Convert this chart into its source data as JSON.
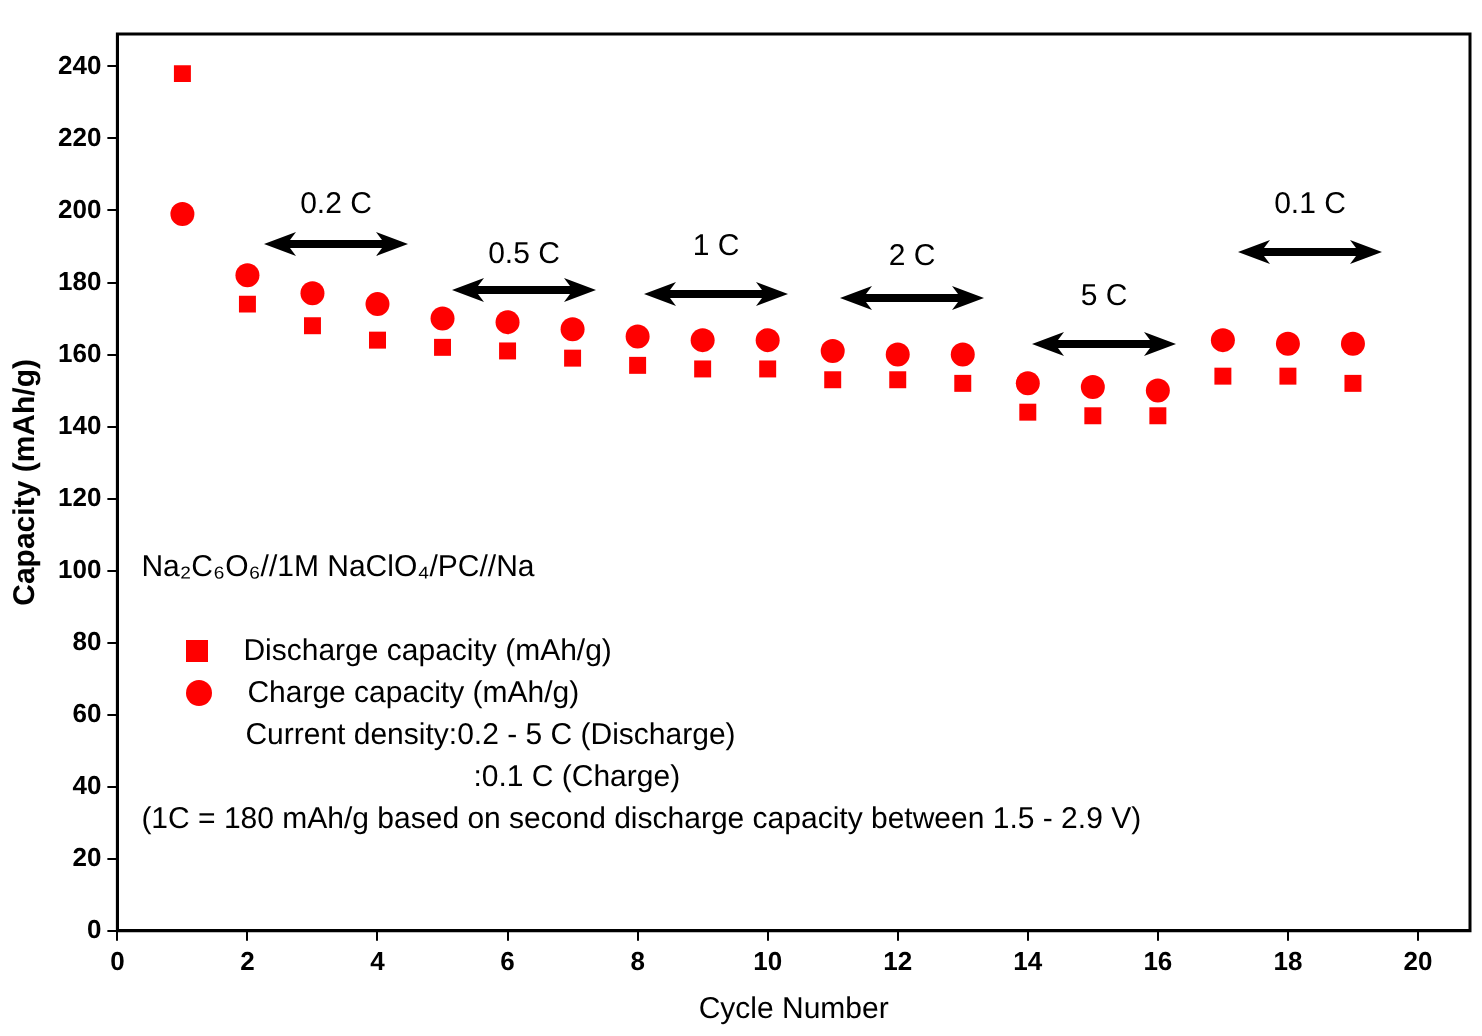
{
  "chart_data": {
    "type": "scatter",
    "xlabel": "Cycle Number",
    "ylabel": "Capacity (mAh/g)",
    "x": [
      1,
      2,
      3,
      4,
      5,
      6,
      7,
      8,
      9,
      10,
      11,
      12,
      13,
      14,
      15,
      16,
      17,
      18,
      19
    ],
    "series": [
      {
        "name": "Discharge capacity (mAh/g)",
        "color": "#ff0000",
        "marker": "square",
        "values": [
          238,
          174,
          168,
          164,
          162,
          161,
          159,
          157,
          156,
          156,
          153,
          153,
          152,
          144,
          143,
          143,
          154,
          154,
          152
        ]
      },
      {
        "name": "Charge capacity (mAh/g)",
        "color": "#ff0000",
        "marker": "circle",
        "values": [
          199,
          182,
          177,
          174,
          170,
          169,
          167,
          165,
          164,
          164,
          161,
          160,
          160,
          152,
          151,
          150,
          164,
          163,
          163
        ]
      }
    ],
    "xlim": [
      0,
      20.8
    ],
    "xticks": [
      0,
      2,
      4,
      6,
      8,
      10,
      12,
      14,
      16,
      18,
      20
    ],
    "ylim": [
      0,
      249
    ],
    "yticks": [
      0,
      20,
      40,
      60,
      80,
      100,
      120,
      140,
      160,
      180,
      200,
      220,
      240
    ],
    "grid": false,
    "legend": "left",
    "annotations": [
      "0.2 C",
      "0.5 C",
      "1 C",
      "2 C",
      "5 C",
      "0.1 C",
      "Na₂C₆O₆//1M NaClO₄/PC//Na",
      "Current density:0.2 - 5 C (Discharge)",
      ":0.1 C (Charge)",
      "(1C = 180 mAh/g based on second discharge capacity between 1.5 - 2.9 V)"
    ]
  }
}
